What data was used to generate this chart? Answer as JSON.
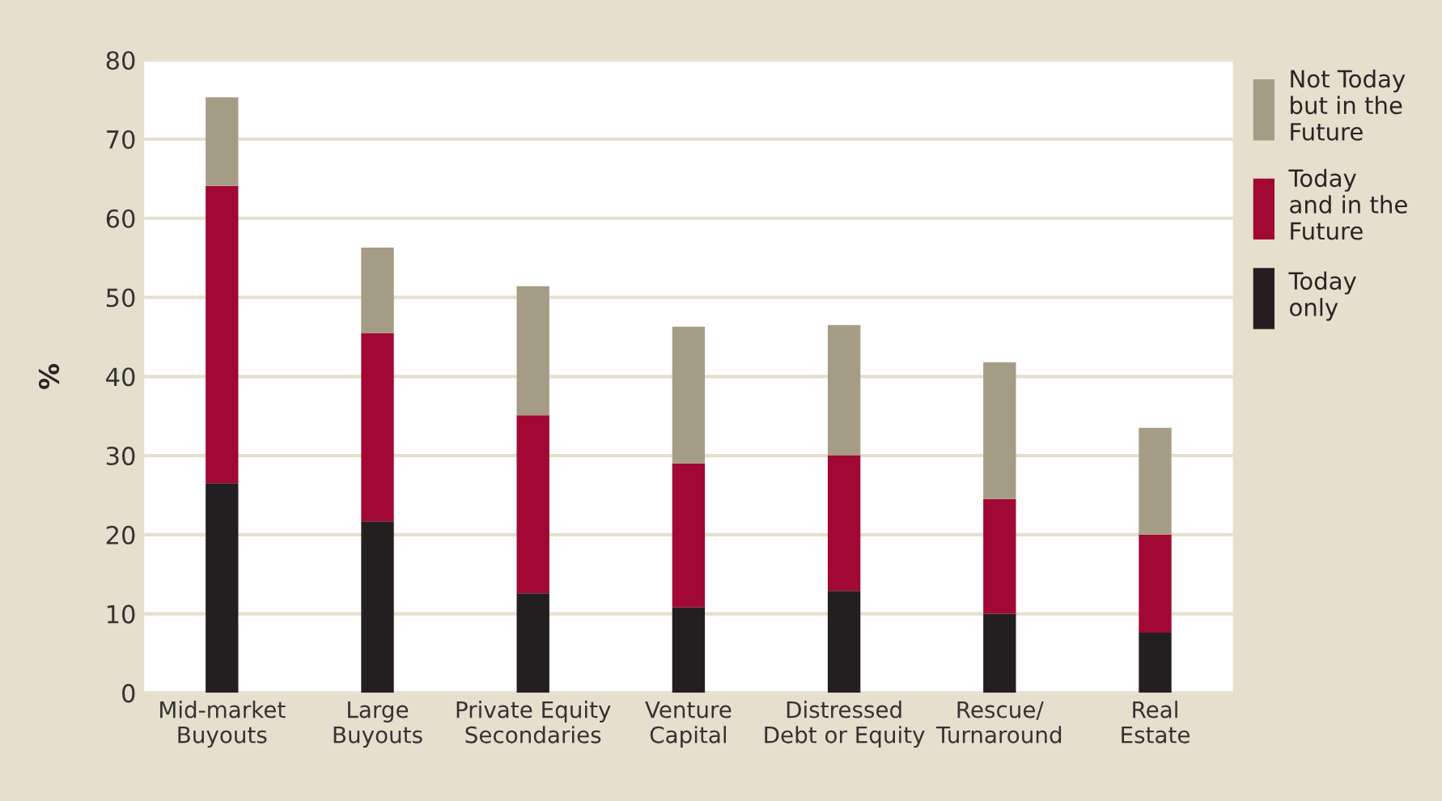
{
  "chart_data": {
    "type": "bar",
    "stacked": true,
    "ylabel": "%",
    "categories": [
      "Mid-market\nBuyouts",
      "Large\nBuyouts",
      "Private Equity\nSecondaries",
      "Venture\nCapital",
      "Distressed\nDebt or Equity",
      "Rescue/\nTurnaround",
      "Real\nEstate"
    ],
    "series": [
      {
        "name": "Today\nonly",
        "color": "#231f20",
        "values": [
          26.5,
          21.7,
          12.6,
          10.8,
          12.9,
          10.0,
          7.6
        ]
      },
      {
        "name": "Today\nand in the\nFuture",
        "color": "#a10834",
        "values": [
          37.6,
          23.8,
          22.5,
          18.2,
          17.1,
          14.5,
          12.4
        ]
      },
      {
        "name": "Not Today\nbut in the\nFuture",
        "color": "#a59c85",
        "values": [
          11.2,
          10.8,
          16.3,
          17.3,
          16.5,
          17.3,
          13.5
        ]
      }
    ],
    "ylim": [
      0,
      80
    ],
    "yticks": [
      0,
      10,
      20,
      30,
      40,
      50,
      60,
      70,
      80
    ],
    "grid": "y",
    "legend": "right"
  }
}
